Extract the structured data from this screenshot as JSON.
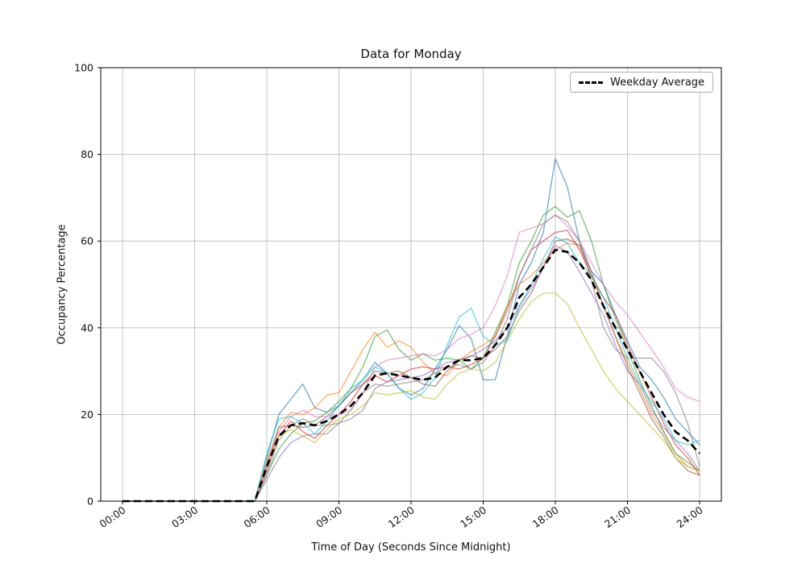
{
  "title": "Data for Monday",
  "xlabel": "Time of Day (Seconds Since Midnight)",
  "ylabel": "Occupancy Percentage",
  "legend": {
    "label": "Weekday Average"
  },
  "colors": {
    "grid": "#b8b8b8",
    "spine": "#000000",
    "average_line": "#000000",
    "text": "#111111"
  },
  "chart_data": {
    "type": "line",
    "title": "Data for Monday",
    "xlabel": "Time of Day (Seconds Since Midnight)",
    "ylabel": "Occupancy Percentage",
    "xlim": [
      0,
      24
    ],
    "ylim": [
      0,
      100
    ],
    "grid": true,
    "legend_position": "upper right",
    "x_tick_hours": [
      0,
      3,
      6,
      9,
      12,
      15,
      18,
      21,
      24
    ],
    "x_tick_labels": [
      "00:00",
      "03:00",
      "06:00",
      "09:00",
      "12:00",
      "15:00",
      "18:00",
      "21:00",
      "24:00"
    ],
    "y_ticks": [
      0,
      20,
      40,
      60,
      80,
      100
    ],
    "x_hours": [
      0,
      0.5,
      1,
      1.5,
      2,
      2.5,
      3,
      3.5,
      4,
      4.5,
      5,
      5.5,
      6,
      6.5,
      7,
      7.5,
      8,
      8.5,
      9,
      9.5,
      10,
      10.5,
      11,
      11.5,
      12,
      12.5,
      13,
      13.5,
      14,
      14.5,
      15,
      15.5,
      16,
      16.5,
      17,
      17.5,
      18,
      18.5,
      19,
      19.5,
      20,
      20.5,
      21,
      21.5,
      22,
      22.5,
      23,
      23.5,
      24
    ],
    "average": {
      "label": "Weekday Average",
      "color": "#000000",
      "dashed": true,
      "values": [
        0,
        0,
        0,
        0,
        0,
        0,
        0,
        0,
        0,
        0,
        0,
        0,
        8,
        15,
        17.5,
        18,
        17.5,
        18.5,
        20,
        22,
        25,
        29,
        29.5,
        29,
        28.5,
        28,
        28.5,
        31,
        32.5,
        32.5,
        33,
        36,
        40,
        47,
        50,
        54,
        58,
        57.5,
        55,
        51,
        45,
        40,
        35,
        30,
        25,
        20,
        16,
        14,
        11
      ]
    },
    "series": [
      {
        "color": "#1f77b4",
        "values": [
          0,
          0,
          0,
          0,
          0,
          0,
          0,
          0,
          0,
          0,
          0,
          0,
          10,
          20,
          23.5,
          27,
          21.5,
          20.5,
          22,
          25,
          28,
          32,
          29.5,
          26,
          24.5,
          26,
          30.5,
          35,
          40.5,
          37.5,
          28,
          28,
          38,
          50,
          55,
          62,
          79,
          72.5,
          60,
          53,
          50,
          43,
          37,
          31,
          28,
          24,
          19,
          16,
          13
        ]
      },
      {
        "color": "#ff7f0e",
        "values": [
          0,
          0,
          0,
          0,
          0,
          0,
          0,
          0,
          0,
          0,
          0,
          0,
          8,
          17,
          20.5,
          20,
          21.5,
          24.5,
          25,
          30,
          35,
          39,
          35.5,
          37,
          35.5,
          32,
          29.5,
          29,
          32.5,
          34.5,
          36,
          38,
          45,
          50,
          52,
          55,
          58,
          59.5,
          59,
          52,
          45,
          38,
          32,
          26,
          20,
          16,
          11,
          8,
          7
        ]
      },
      {
        "color": "#2ca02c",
        "values": [
          0,
          0,
          0,
          0,
          0,
          0,
          0,
          0,
          0,
          0,
          0,
          0,
          6,
          12,
          15.5,
          18,
          18.5,
          20.5,
          23,
          26,
          31,
          38,
          39.5,
          35,
          32.5,
          34,
          32.5,
          33,
          32.5,
          30.5,
          33,
          39,
          45,
          55,
          60,
          66,
          68,
          65.5,
          67,
          60,
          50,
          42,
          35,
          28,
          22,
          16,
          11,
          9,
          7
        ]
      },
      {
        "color": "#d62728",
        "values": [
          0,
          0,
          0,
          0,
          0,
          0,
          0,
          0,
          0,
          0,
          0,
          0,
          7,
          15,
          18.5,
          16,
          14.5,
          17.5,
          20,
          23,
          27,
          29,
          27.5,
          29,
          30.5,
          31,
          30.5,
          31,
          30.5,
          31.5,
          33,
          38,
          44,
          52,
          58,
          60,
          62,
          62.5,
          58,
          52,
          47,
          43,
          36,
          30,
          24,
          18,
          13,
          10,
          6
        ]
      },
      {
        "color": "#9467bd",
        "values": [
          0,
          0,
          0,
          0,
          0,
          0,
          0,
          0,
          0,
          0,
          0,
          0,
          5,
          10,
          13.5,
          15,
          15.5,
          15.5,
          18,
          19,
          21,
          26,
          27.5,
          28,
          28.5,
          29,
          30.5,
          32,
          32.5,
          33.5,
          35,
          37,
          40,
          45,
          49,
          54,
          59,
          57.5,
          53,
          48,
          43,
          36,
          30,
          27,
          21,
          17,
          14,
          11,
          7
        ]
      },
      {
        "color": "#8c564b",
        "values": [
          0,
          0,
          0,
          0,
          0,
          0,
          0,
          0,
          0,
          0,
          0,
          0,
          9,
          17,
          17.5,
          17,
          17.5,
          19.5,
          22,
          25,
          27,
          30,
          29.5,
          30,
          28.5,
          27,
          26.5,
          30,
          32.5,
          33.5,
          33,
          35,
          38,
          44,
          48,
          54,
          60,
          60.5,
          59,
          53,
          45,
          38,
          31,
          25,
          19,
          15,
          10,
          7,
          6
        ]
      },
      {
        "color": "#e377c2",
        "values": [
          0,
          0,
          0,
          0,
          0,
          0,
          0,
          0,
          0,
          0,
          0,
          0,
          8,
          16,
          19.5,
          21,
          19.5,
          19.5,
          20,
          21,
          25,
          31,
          32.5,
          33,
          33.5,
          34,
          33.5,
          35,
          37.5,
          38.5,
          40,
          45,
          52,
          62,
          63,
          64,
          66,
          63.5,
          60,
          55,
          50,
          46,
          43,
          39,
          35,
          31,
          26,
          24,
          23
        ]
      },
      {
        "color": "#7f7f7f",
        "values": [
          0,
          0,
          0,
          0,
          0,
          0,
          0,
          0,
          0,
          0,
          0,
          0,
          6,
          14,
          17.5,
          19,
          17.5,
          17.5,
          18,
          21,
          25,
          27,
          26.5,
          27,
          27.5,
          28,
          29.5,
          31,
          31.5,
          30.5,
          32,
          36,
          42,
          52,
          58,
          64,
          66,
          64.5,
          60,
          51,
          40,
          35,
          33,
          33,
          33,
          30,
          25,
          18,
          8
        ]
      },
      {
        "color": "#bcbd22",
        "values": [
          0,
          0,
          0,
          0,
          0,
          0,
          0,
          0,
          0,
          0,
          0,
          0,
          9,
          15,
          16.5,
          15,
          13.5,
          16.5,
          19,
          20,
          22,
          25,
          24.5,
          25,
          25.5,
          24,
          23.5,
          27,
          29.5,
          30.5,
          30,
          32,
          37,
          42,
          46,
          48,
          48,
          45.5,
          40,
          35,
          30,
          26,
          23,
          20,
          17,
          14,
          10,
          8,
          7
        ]
      },
      {
        "color": "#17becf",
        "values": [
          0,
          0,
          0,
          0,
          0,
          0,
          0,
          0,
          0,
          0,
          0,
          0,
          11,
          19,
          19.5,
          18,
          15.5,
          18.5,
          22,
          26,
          28,
          31,
          29.5,
          26,
          23.5,
          25,
          28.5,
          36,
          42.5,
          44.5,
          38,
          36,
          37,
          45,
          50,
          56,
          61,
          59.5,
          55,
          52,
          47,
          40,
          33,
          27,
          23,
          19,
          14,
          13,
          14
        ]
      }
    ]
  }
}
